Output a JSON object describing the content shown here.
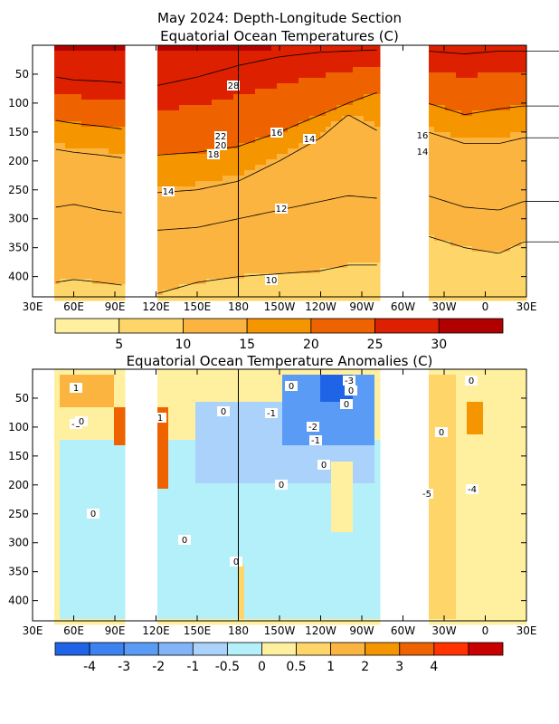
{
  "title_lines": [
    "May 2024: Depth-Longitude Section",
    "Equatorial Ocean Temperatures (C)"
  ],
  "chart_data": [
    {
      "type": "heatmap",
      "title": "May 2024: Depth-Longitude Section / Equatorial Ocean Temperatures (C)",
      "x_tick_labels": [
        "30E",
        "60E",
        "90E",
        "120E",
        "150E",
        "180",
        "150W",
        "120W",
        "90W",
        "60W",
        "30W",
        "0",
        "30E"
      ],
      "x_tick_lon": [
        30,
        60,
        90,
        120,
        150,
        180,
        210,
        240,
        270,
        300,
        330,
        360,
        390
      ],
      "y_tick_labels": [
        "50",
        "100",
        "150",
        "200",
        "250",
        "300",
        "350",
        "400"
      ],
      "y_tick_depth": [
        50,
        100,
        150,
        200,
        250,
        300,
        350,
        400
      ],
      "xlim_lon": [
        30,
        390
      ],
      "ylim_depth_m": [
        0,
        435
      ],
      "land_gaps_lon": [
        [
          96,
          120
        ],
        [
          283,
          318
        ]
      ],
      "data_lon_range": [
        47,
        418
      ],
      "contour_labels": [
        "28",
        "22",
        "20",
        "18",
        "16",
        "14",
        "14",
        "12",
        "10",
        "16",
        "14"
      ],
      "thermocline_depth_m": {
        "lon": [
          47,
          60,
          80,
          96,
          120,
          150,
          180,
          210,
          240,
          260,
          283,
          318,
          345,
          370,
          388,
          418
        ],
        "isotherm_28": [
          55,
          60,
          62,
          65,
          70,
          55,
          35,
          20,
          12,
          10,
          8,
          10,
          15,
          10,
          10,
          10
        ],
        "isotherm_20": [
          130,
          135,
          140,
          145,
          190,
          185,
          175,
          150,
          120,
          100,
          80,
          100,
          120,
          110,
          105,
          105
        ],
        "isotherm_14": [
          180,
          185,
          190,
          195,
          255,
          250,
          235,
          200,
          160,
          120,
          150,
          150,
          170,
          170,
          160,
          160
        ],
        "isotherm_12": [
          280,
          275,
          285,
          290,
          320,
          315,
          300,
          285,
          270,
          260,
          265,
          260,
          280,
          285,
          270,
          270
        ],
        "isotherm_10": [
          410,
          405,
          410,
          415,
          430,
          410,
          400,
          395,
          390,
          380,
          380,
          330,
          350,
          360,
          340,
          340
        ]
      },
      "colorbar": {
        "tick_labels": [
          "5",
          "10",
          "15",
          "20",
          "25",
          "30"
        ],
        "levels": [
          0,
          5,
          10,
          15,
          20,
          25,
          30,
          35
        ],
        "colors": [
          "#fff0a0",
          "#fdd569",
          "#fbb440",
          "#f59500",
          "#ee6200",
          "#dd2000",
          "#b10000"
        ]
      }
    },
    {
      "type": "heatmap",
      "title": "Equatorial Ocean Temperature Anomalies (C)",
      "x_tick_labels": [
        "30E",
        "60E",
        "90E",
        "120E",
        "150E",
        "180",
        "150W",
        "120W",
        "90W",
        "60W",
        "30W",
        "0",
        "30E"
      ],
      "x_tick_lon": [
        30,
        60,
        90,
        120,
        150,
        180,
        210,
        240,
        270,
        300,
        330,
        360,
        390
      ],
      "y_tick_labels": [
        "50",
        "100",
        "150",
        "200",
        "250",
        "300",
        "350",
        "400"
      ],
      "y_tick_depth": [
        50,
        100,
        150,
        200,
        250,
        300,
        350,
        400
      ],
      "xlim_lon": [
        30,
        390
      ],
      "ylim_depth_m": [
        0,
        435
      ],
      "land_gaps_lon": [
        [
          96,
          120
        ],
        [
          283,
          318
        ]
      ],
      "contour_labels": [
        "1",
        "-1",
        "0",
        "1",
        "0",
        "0",
        "-1",
        "-2",
        "-1",
        "0",
        "0",
        "0",
        "0",
        "-5",
        "-4",
        "-3",
        "0",
        "0",
        "0",
        "0",
        "0"
      ],
      "anomaly_patches": [
        {
          "lon": [
            50,
            90
          ],
          "depth_m": [
            5,
            70
          ],
          "anomaly_c": 1.5
        },
        {
          "lon": [
            88,
            96
          ],
          "depth_m": [
            70,
            130
          ],
          "anomaly_c": 3.5
        },
        {
          "lon": [
            120,
            130
          ],
          "depth_m": [
            70,
            210
          ],
          "anomaly_c": 3.0
        },
        {
          "lon": [
            213,
            280
          ],
          "depth_m": [
            5,
            130
          ],
          "anomaly_c": -2.5
        },
        {
          "lon": [
            240,
            265
          ],
          "depth_m": [
            5,
            60
          ],
          "anomaly_c": -5.0
        },
        {
          "lon": [
            150,
            280
          ],
          "depth_m": [
            60,
            200
          ],
          "anomaly_c": -0.7
        },
        {
          "lon": [
            50,
            283
          ],
          "depth_m": [
            120,
            435
          ],
          "anomaly_c": -0.3
        },
        {
          "lon": [
            248,
            262
          ],
          "depth_m": [
            160,
            280
          ],
          "anomaly_c": 0.3
        },
        {
          "lon": [
            180,
            186
          ],
          "depth_m": [
            340,
            435
          ],
          "anomaly_c": 0.7
        },
        {
          "lon": [
            320,
            340
          ],
          "depth_m": [
            5,
            435
          ],
          "anomaly_c": 0.5
        },
        {
          "lon": [
            345,
            360
          ],
          "depth_m": [
            60,
            110
          ],
          "anomaly_c": 2.5
        }
      ],
      "colorbar": {
        "tick_labels": [
          "-4",
          "-3",
          "-2",
          "-1",
          "-0.5",
          "0",
          "0.5",
          "1",
          "2",
          "3",
          "4"
        ],
        "levels": [
          -5,
          -4,
          -3,
          -2,
          -1,
          -0.5,
          0,
          0.5,
          1,
          2,
          3,
          4,
          5
        ],
        "colors": [
          "#1f64e6",
          "#3c82f0",
          "#5a9bf5",
          "#82b4f8",
          "#aad2fa",
          "#b4f0fa",
          "#fff0a0",
          "#fdd569",
          "#fbb440",
          "#f59500",
          "#ee6200",
          "#ff3200",
          "#c80000"
        ]
      }
    }
  ]
}
